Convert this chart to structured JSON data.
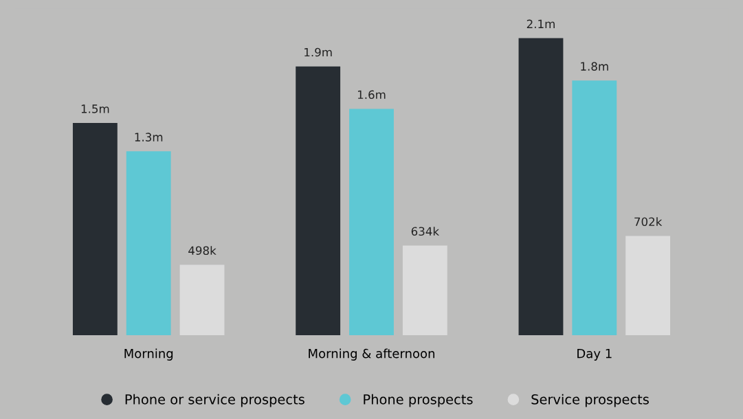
{
  "chart_data": {
    "type": "bar",
    "categories": [
      "Morning",
      "Morning & afternoon",
      "Day 1"
    ],
    "series": [
      {
        "name": "Phone or service prospects",
        "color": "#272d33",
        "values": [
          1500000,
          1900000,
          2100000
        ],
        "value_labels": [
          "1.5m",
          "1.9m",
          "2.1m"
        ]
      },
      {
        "name": "Phone prospects",
        "color": "#5ec8d4",
        "values": [
          1300000,
          1600000,
          1800000
        ],
        "value_labels": [
          "1.3m",
          "1.6m",
          "1.8m"
        ]
      },
      {
        "name": "Service prospects",
        "color": "#dcdcdc",
        "values": [
          498000,
          634000,
          702000
        ],
        "value_labels": [
          "498k",
          "634k",
          "702k"
        ]
      }
    ],
    "legend": "bottom",
    "grid": false
  }
}
